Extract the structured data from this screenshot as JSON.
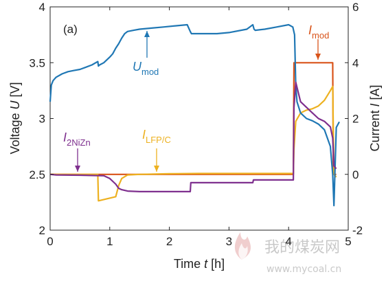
{
  "chart_data": {
    "type": "line",
    "panel_label": "(a)",
    "xlabel": "Time t [h]",
    "ylabel_left": "Voltage U [V]",
    "ylabel_right": "Current I [A]",
    "xlim": [
      0,
      5
    ],
    "ylim_left": [
      2,
      4
    ],
    "ylim_right": [
      -2,
      6
    ],
    "xticks": [
      "0",
      "1",
      "2",
      "3",
      "4",
      "5"
    ],
    "yticks_left": [
      "2",
      "2.5",
      "3",
      "3.5",
      "4"
    ],
    "yticks_right": [
      "-2",
      "0",
      "2",
      "4",
      "6"
    ],
    "grid": false,
    "series": [
      {
        "name": "U_mod",
        "axis": "left",
        "color": "#1f77b4",
        "x": [
          0,
          0.02,
          0.05,
          0.1,
          0.2,
          0.3,
          0.4,
          0.5,
          0.6,
          0.7,
          0.8,
          0.81,
          0.83,
          0.9,
          1.0,
          1.05,
          1.1,
          1.15,
          1.2,
          1.25,
          1.3,
          1.4,
          1.5,
          1.7,
          1.9,
          2.1,
          2.3,
          2.35,
          2.37,
          2.5,
          2.8,
          3.0,
          3.3,
          3.4,
          3.42,
          3.44,
          3.6,
          3.8,
          4.0,
          4.07,
          4.1,
          4.12,
          4.14,
          4.2,
          4.3,
          4.4,
          4.5,
          4.6,
          4.7,
          4.74,
          4.76,
          4.8,
          4.85
        ],
        "y": [
          3.15,
          3.3,
          3.34,
          3.37,
          3.4,
          3.42,
          3.43,
          3.44,
          3.46,
          3.48,
          3.51,
          3.47,
          3.48,
          3.5,
          3.55,
          3.58,
          3.63,
          3.67,
          3.72,
          3.76,
          3.78,
          3.79,
          3.8,
          3.81,
          3.82,
          3.83,
          3.84,
          3.78,
          3.76,
          3.76,
          3.76,
          3.77,
          3.8,
          3.84,
          3.8,
          3.79,
          3.8,
          3.82,
          3.84,
          3.82,
          3.75,
          3.3,
          3.15,
          3.05,
          3.0,
          2.98,
          2.95,
          2.9,
          2.75,
          2.5,
          2.22,
          2.92,
          2.97
        ]
      },
      {
        "name": "I_mod",
        "axis": "right",
        "color": "#d95319",
        "x": [
          0,
          4.08,
          4.09,
          4.74,
          4.75,
          4.8
        ],
        "y": [
          0,
          0,
          4.0,
          4.0,
          0,
          0
        ]
      },
      {
        "name": "I_LFP/C",
        "axis": "right",
        "color": "#edb120",
        "x": [
          0,
          0.8,
          0.81,
          1.1,
          1.15,
          1.2,
          1.3,
          1.5,
          2.0,
          2.5,
          3.0,
          3.5,
          4.08,
          4.09,
          4.12,
          4.2,
          4.3,
          4.4,
          4.5,
          4.6,
          4.7,
          4.74,
          4.76,
          4.8
        ],
        "y": [
          0.0,
          0.0,
          -0.95,
          -0.8,
          -0.4,
          -0.15,
          -0.02,
          0.0,
          0.02,
          0.03,
          0.03,
          0.03,
          0.03,
          0.9,
          1.9,
          2.2,
          2.3,
          2.35,
          2.45,
          2.65,
          3.0,
          3.15,
          0.0,
          -0.1
        ]
      },
      {
        "name": "I_2NiZn",
        "axis": "right",
        "color": "#7e2f8e",
        "x": [
          0,
          0.1,
          0.5,
          0.9,
          1.0,
          1.1,
          1.15,
          1.2,
          1.3,
          1.5,
          2.0,
          2.2,
          2.35,
          2.36,
          2.8,
          3.4,
          3.41,
          4.08,
          4.09,
          4.12,
          4.2,
          4.3,
          4.4,
          4.5,
          4.6,
          4.7,
          4.74,
          4.76,
          4.8
        ],
        "y": [
          0.0,
          -0.02,
          -0.03,
          -0.05,
          -0.15,
          -0.35,
          -0.5,
          -0.55,
          -0.6,
          -0.62,
          -0.62,
          -0.62,
          -0.62,
          -0.3,
          -0.3,
          -0.3,
          -0.2,
          -0.2,
          2.4,
          3.3,
          2.6,
          2.4,
          2.2,
          2.0,
          1.9,
          1.7,
          1.3,
          0.3,
          0.2
        ]
      }
    ],
    "annotations": [
      {
        "series": "U_mod",
        "main": "U",
        "sub": "mod",
        "color": "#1f77b4"
      },
      {
        "series": "I_mod",
        "main": "I",
        "sub": "mod",
        "color": "#d95319"
      },
      {
        "series": "I_LFP/C",
        "main": "I",
        "sub": "LFP/C",
        "color": "#edb120"
      },
      {
        "series": "I_2NiZn",
        "main": "I",
        "sub": "2NiZn",
        "color": "#7e2f8e"
      }
    ]
  },
  "watermark": {
    "site_cn": "我的煤炭网",
    "url": "www.mycoal.cn"
  }
}
